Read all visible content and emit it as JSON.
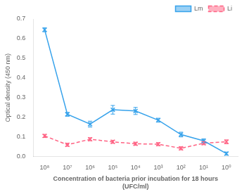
{
  "chart_data": {
    "type": "line",
    "x_label": "Concentration of bacteria prior incubation for 18 hours\n(UFC/ml)",
    "y_label": "Optical density (450 nm)",
    "categories": [
      "10⁸",
      "10⁷",
      "10⁶",
      "10⁵",
      "10⁴",
      "10³",
      "10²",
      "10¹",
      "10⁰"
    ],
    "series": [
      {
        "name": "Lm",
        "values": [
          0.645,
          0.215,
          0.165,
          0.238,
          0.232,
          0.185,
          0.112,
          0.08,
          0.015
        ],
        "errors": [
          0.01,
          0.01,
          0.015,
          0.022,
          0.018,
          0.01,
          0.012,
          0.01,
          0.008
        ],
        "marker": "x",
        "line_style": "solid"
      },
      {
        "name": "Li",
        "values": [
          0.105,
          0.06,
          0.088,
          0.075,
          0.065,
          0.063,
          0.042,
          0.068,
          0.075
        ],
        "errors": [
          0.008,
          0.008,
          0.008,
          0.008,
          0.008,
          0.008,
          0.008,
          0.008,
          0.01
        ],
        "marker": "x",
        "line_style": "dashed"
      }
    ],
    "ylim": [
      0.0,
      0.7
    ],
    "yticks": [
      {
        "value": 0.0,
        "label": "0.0"
      },
      0.1,
      0.2,
      0.3,
      0.4,
      0.5,
      0.6,
      0.7
    ],
    "grid": false,
    "legend": "upper right"
  }
}
